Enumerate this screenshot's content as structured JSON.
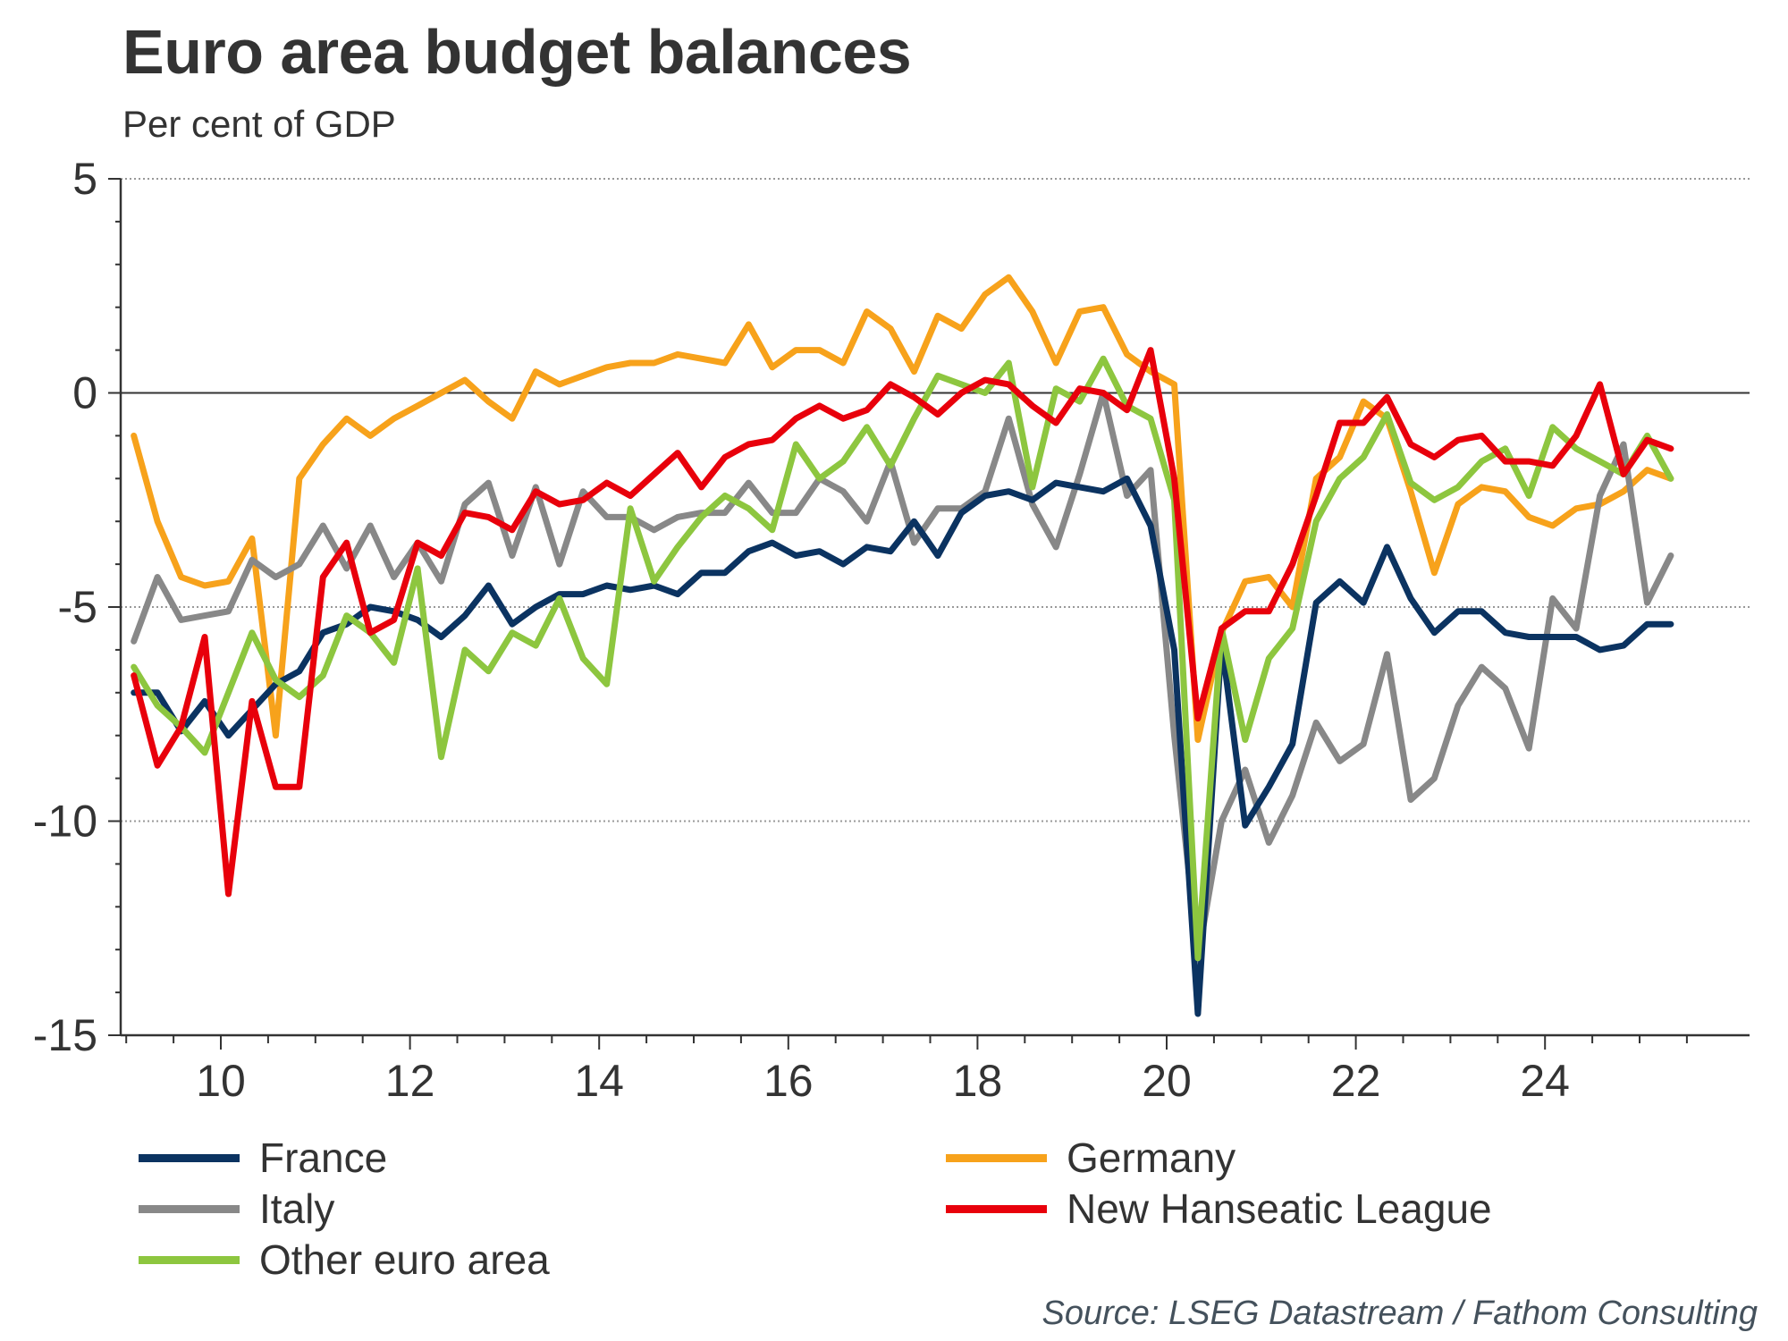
{
  "chart_data": {
    "type": "line",
    "title": "Euro area budget balances",
    "subtitle": "Per cent of GDP",
    "xlabel": "",
    "ylabel": "Per cent of GDP",
    "source": "Source: LSEG Datastream / Fathom Consulting",
    "ylim": [
      -15,
      5
    ],
    "yticks": [
      5,
      0,
      -5,
      -10,
      -15
    ],
    "ytick_labels": [
      "5",
      "0",
      "-5",
      "-10",
      "-15"
    ],
    "xlim": [
      2009,
      2026.75
    ],
    "xticks": [
      2010,
      2012,
      2014,
      2016,
      2018,
      2020,
      2022,
      2024
    ],
    "xtick_labels": [
      "10",
      "12",
      "14",
      "16",
      "18",
      "20",
      "22",
      "24"
    ],
    "grid": "horizontal dotted",
    "legend_position": "bottom",
    "x_start": 2009.08,
    "x_step": 0.25,
    "series": [
      {
        "name": "France",
        "color": "#0b3361",
        "values": [
          -7.0,
          -7.0,
          -7.9,
          -7.2,
          -8.0,
          -7.4,
          -6.8,
          -6.5,
          -5.6,
          -5.4,
          -5.0,
          -5.1,
          -5.3,
          -5.7,
          -5.2,
          -4.5,
          -5.4,
          -5.0,
          -4.7,
          -4.7,
          -4.5,
          -4.6,
          -4.5,
          -4.7,
          -4.2,
          -4.2,
          -3.7,
          -3.5,
          -3.8,
          -3.7,
          -4.0,
          -3.6,
          -3.7,
          -3.0,
          -3.8,
          -2.8,
          -2.4,
          -2.3,
          -2.5,
          -2.1,
          -2.2,
          -2.3,
          -2.0,
          -3.1,
          -6.0,
          -14.5,
          -5.8,
          -10.1,
          -9.2,
          -8.2,
          -4.9,
          -4.4,
          -4.9,
          -3.6,
          -4.8,
          -5.6,
          -5.1,
          -5.1,
          -5.6,
          -5.7,
          -5.7,
          -5.7,
          -6.0,
          -5.9,
          -5.4,
          -5.4
        ]
      },
      {
        "name": "Germany",
        "color": "#f7a21b",
        "values": [
          -1.0,
          -3.0,
          -4.3,
          -4.5,
          -4.4,
          -3.4,
          -8.0,
          -2.0,
          -1.2,
          -0.6,
          -1.0,
          -0.6,
          -0.3,
          0.0,
          0.3,
          -0.2,
          -0.6,
          0.5,
          0.2,
          0.4,
          0.6,
          0.7,
          0.7,
          0.9,
          0.8,
          0.7,
          1.6,
          0.6,
          1.0,
          1.0,
          0.7,
          1.9,
          1.5,
          0.5,
          1.8,
          1.5,
          2.3,
          2.7,
          1.9,
          0.7,
          1.9,
          2.0,
          0.9,
          0.5,
          0.2,
          -8.1,
          -5.6,
          -4.4,
          -4.3,
          -5.0,
          -2.0,
          -1.5,
          -0.2,
          -0.6,
          -2.3,
          -4.2,
          -2.6,
          -2.2,
          -2.3,
          -2.9,
          -3.1,
          -2.7,
          -2.6,
          -2.3,
          -1.8,
          -2.0
        ]
      },
      {
        "name": "Italy",
        "color": "#888888",
        "values": [
          -5.8,
          -4.3,
          -5.3,
          -5.2,
          -5.1,
          -3.9,
          -4.3,
          -4.0,
          -3.1,
          -4.1,
          -3.1,
          -4.3,
          -3.5,
          -4.4,
          -2.6,
          -2.1,
          -3.8,
          -2.2,
          -4.0,
          -2.3,
          -2.9,
          -2.9,
          -3.2,
          -2.9,
          -2.8,
          -2.8,
          -2.1,
          -2.8,
          -2.8,
          -2.0,
          -2.3,
          -3.0,
          -1.6,
          -3.5,
          -2.7,
          -2.7,
          -2.3,
          -0.6,
          -2.6,
          -3.6,
          -1.9,
          0.0,
          -2.4,
          -1.8,
          -8.0,
          -13.2,
          -10.0,
          -8.8,
          -10.5,
          -9.4,
          -7.7,
          -8.6,
          -8.2,
          -6.1,
          -9.5,
          -9.0,
          -7.3,
          -6.4,
          -6.9,
          -8.3,
          -4.8,
          -5.5,
          -2.4,
          -1.2,
          -4.9,
          -3.8
        ]
      },
      {
        "name": "New Hanseatic League",
        "color": "#e8000b",
        "values": [
          -6.6,
          -8.7,
          -7.8,
          -5.7,
          -11.7,
          -7.2,
          -9.2,
          -9.2,
          -4.3,
          -3.5,
          -5.6,
          -5.3,
          -3.5,
          -3.8,
          -2.8,
          -2.9,
          -3.2,
          -2.3,
          -2.6,
          -2.5,
          -2.1,
          -2.4,
          -1.9,
          -1.4,
          -2.2,
          -1.5,
          -1.2,
          -1.1,
          -0.6,
          -0.3,
          -0.6,
          -0.4,
          0.2,
          -0.1,
          -0.5,
          0.0,
          0.3,
          0.2,
          -0.3,
          -0.7,
          0.1,
          0.0,
          -0.4,
          1.0,
          -2.0,
          -7.6,
          -5.5,
          -5.1,
          -5.1,
          -4.0,
          -2.4,
          -0.7,
          -0.7,
          -0.1,
          -1.2,
          -1.5,
          -1.1,
          -1.0,
          -1.6,
          -1.6,
          -1.7,
          -1.0,
          0.2,
          -1.9,
          -1.1,
          -1.3
        ]
      },
      {
        "name": "Other euro area",
        "color": "#8dc63f",
        "values": [
          -6.4,
          -7.3,
          -7.8,
          -8.4,
          -7.0,
          -5.6,
          -6.7,
          -7.1,
          -6.6,
          -5.2,
          -5.6,
          -6.3,
          -4.1,
          -8.5,
          -6.0,
          -6.5,
          -5.6,
          -5.9,
          -4.8,
          -6.2,
          -6.8,
          -2.7,
          -4.4,
          -3.6,
          -2.9,
          -2.4,
          -2.7,
          -3.2,
          -1.2,
          -2.0,
          -1.6,
          -0.8,
          -1.7,
          -0.6,
          0.4,
          0.2,
          0.0,
          0.7,
          -2.2,
          0.1,
          -0.2,
          0.8,
          -0.3,
          -0.6,
          -2.5,
          -13.2,
          -5.5,
          -8.1,
          -6.2,
          -5.5,
          -3.0,
          -2.0,
          -1.5,
          -0.5,
          -2.1,
          -2.5,
          -2.2,
          -1.6,
          -1.3,
          -2.4,
          -0.8,
          -1.3,
          -1.6,
          -1.9,
          -1.0,
          -2.0
        ]
      }
    ]
  }
}
